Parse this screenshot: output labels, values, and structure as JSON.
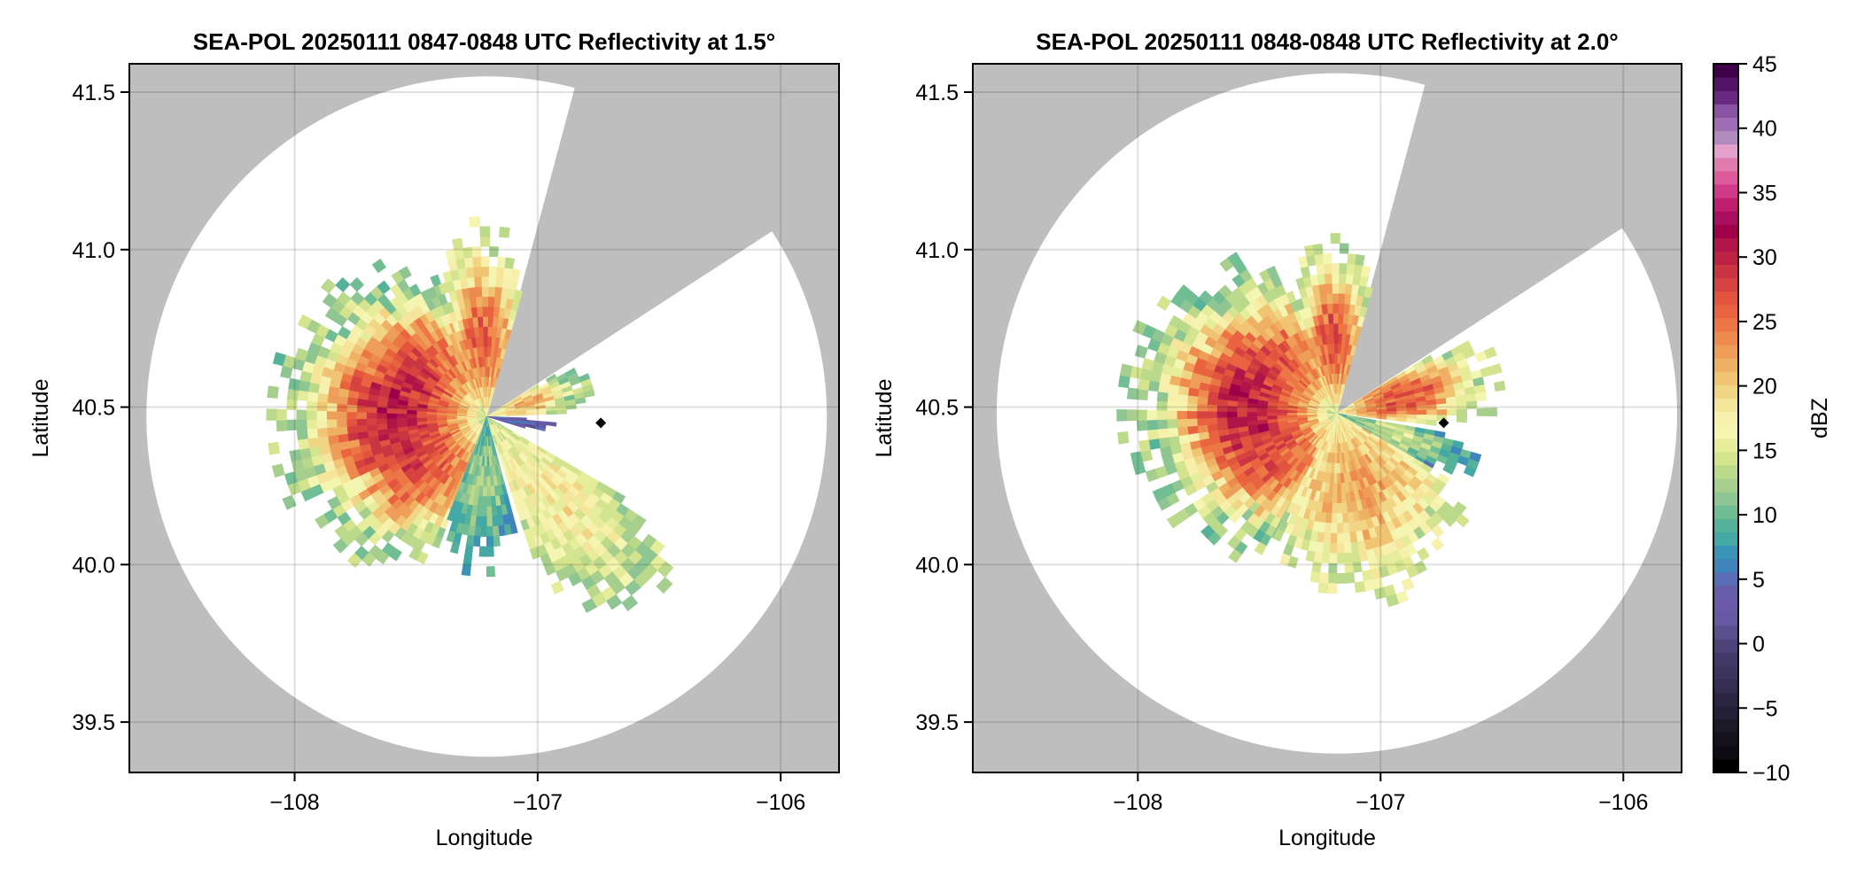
{
  "chart_data": [
    {
      "type": "heatmap",
      "subtype": "radar-ppi",
      "title": "SEA-POL 20250111 0847-0848 UTC Reflectivity at 1.5°",
      "xlabel": "Longitude",
      "ylabel": "Latitude",
      "xlim": [
        -108.68,
        -105.76
      ],
      "ylim": [
        39.34,
        41.59
      ],
      "xticks": [
        -108,
        -107,
        -106
      ],
      "xtick_labels": [
        "−108",
        "−107",
        "−106"
      ],
      "yticks": [
        39.5,
        40.0,
        40.5,
        41.0,
        41.5
      ],
      "ytick_labels": [
        "39.5",
        "40.0",
        "40.5",
        "41.0",
        "41.5"
      ],
      "grid": true,
      "background_color": "#bebebe",
      "radar_center": {
        "lon": -107.21,
        "lat": 40.47
      },
      "range_circle_lat_deg": 1.08,
      "blocked_sector_deg": [
        15,
        57
      ],
      "marker": {
        "lon": -106.74,
        "lat": 40.45,
        "shape": "diamond",
        "color": "#000000"
      },
      "echo_lobes": [
        {
          "az_from": 200,
          "az_to": 340,
          "max_range_frac": 0.62,
          "core_dbz": 30,
          "edge_dbz": 12
        },
        {
          "az_from": 340,
          "az_to": 14,
          "max_range_frac": 0.55,
          "core_dbz": 26,
          "edge_dbz": 15
        },
        {
          "az_from": 58,
          "az_to": 88,
          "max_range_frac": 0.33,
          "core_dbz": 22,
          "edge_dbz": 12
        },
        {
          "az_from": 92,
          "az_to": 105,
          "max_range_frac": 0.18,
          "core_dbz": 5,
          "edge_dbz": 3
        },
        {
          "az_from": 120,
          "az_to": 160,
          "max_range_frac": 0.72,
          "core_dbz": 18,
          "edge_dbz": 13
        },
        {
          "az_from": 165,
          "az_to": 200,
          "max_range_frac": 0.45,
          "core_dbz": 12,
          "edge_dbz": 8
        }
      ]
    },
    {
      "type": "heatmap",
      "subtype": "radar-ppi",
      "title": "SEA-POL 20250111 0848-0848 UTC Reflectivity at 2.0°",
      "xlabel": "Longitude",
      "ylabel": "Latitude",
      "xlim": [
        -108.68,
        -105.76
      ],
      "ylim": [
        39.34,
        41.59
      ],
      "xticks": [
        -108,
        -107,
        -106
      ],
      "xtick_labels": [
        "−108",
        "−107",
        "−106"
      ],
      "yticks": [
        39.5,
        40.0,
        40.5,
        41.0,
        41.5
      ],
      "ytick_labels": [
        "39.5",
        "40.0",
        "40.5",
        "41.0",
        "41.5"
      ],
      "grid": true,
      "background_color": "#bebebe",
      "radar_center": {
        "lon": -107.18,
        "lat": 40.48
      },
      "range_circle_lat_deg": 1.08,
      "blocked_sector_deg": [
        15,
        57
      ],
      "marker": {
        "lon": -106.74,
        "lat": 40.45,
        "shape": "diamond",
        "color": "#000000"
      },
      "echo_lobes": [
        {
          "az_from": 205,
          "az_to": 340,
          "max_range_frac": 0.62,
          "core_dbz": 30,
          "edge_dbz": 12
        },
        {
          "az_from": 340,
          "az_to": 14,
          "max_range_frac": 0.52,
          "core_dbz": 27,
          "edge_dbz": 14
        },
        {
          "az_from": 58,
          "az_to": 95,
          "max_range_frac": 0.5,
          "core_dbz": 27,
          "edge_dbz": 14
        },
        {
          "az_from": 100,
          "az_to": 120,
          "max_range_frac": 0.42,
          "core_dbz": 14,
          "edge_dbz": 8
        },
        {
          "az_from": 120,
          "az_to": 205,
          "max_range_frac": 0.55,
          "core_dbz": 22,
          "edge_dbz": 15
        }
      ]
    }
  ],
  "colorbar": {
    "label": "dBZ",
    "range": [
      -10,
      45
    ],
    "ticks": [
      -10,
      -5,
      0,
      5,
      10,
      15,
      20,
      25,
      30,
      35,
      40,
      45
    ],
    "tick_labels": [
      "−10",
      "−5",
      "0",
      "5",
      "10",
      "15",
      "20",
      "25",
      "30",
      "35",
      "40",
      "45"
    ],
    "colors": [
      "#000000",
      "#0d0b11",
      "#15121c",
      "#1d1a28",
      "#25203a",
      "#2d2643",
      "#362d52",
      "#3e3460",
      "#443a6a",
      "#4d4379",
      "#5a4f8d",
      "#6658a3",
      "#6b5aaa",
      "#665ea9",
      "#5a6db7",
      "#3f85bc",
      "#3a94b6",
      "#44a8a5",
      "#55b198",
      "#71bd94",
      "#8ec593",
      "#a6cf8e",
      "#bbd98b",
      "#d3e38e",
      "#e6ed9a",
      "#f5f5b2",
      "#f7f0ac",
      "#f5e59b",
      "#f2d584",
      "#f1c473",
      "#eeb063",
      "#ee9e58",
      "#ee8a4d",
      "#ec7645",
      "#e96340",
      "#e3543f",
      "#d6423f",
      "#cb3442",
      "#bd2244",
      "#b01448",
      "#a0004b",
      "#ab1060",
      "#c01f70",
      "#d03a88",
      "#dd5b9c",
      "#e07bae",
      "#e4a1cd",
      "#b38ac0",
      "#9f6db5",
      "#8a52a2",
      "#6b2a82",
      "#541367",
      "#3f0049"
    ]
  }
}
